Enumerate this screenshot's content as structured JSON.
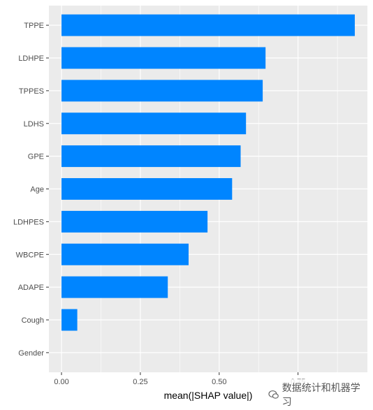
{
  "chart_data": {
    "type": "bar",
    "orientation": "horizontal",
    "categories": [
      "TPPE",
      "LDHPE",
      "TPPES",
      "LDHS",
      "GPE",
      "Age",
      "LDHPES",
      "WBCPE",
      "ADAPE",
      "Cough",
      "Gender"
    ],
    "values": [
      0.93,
      0.647,
      0.638,
      0.585,
      0.568,
      0.541,
      0.463,
      0.403,
      0.337,
      0.05,
      0.0
    ],
    "title": "",
    "xlabel": "mean(|SHAP value|)",
    "ylabel": "",
    "xlim": [
      -0.04,
      0.97
    ],
    "x_ticks": [
      "0.00",
      "0.25",
      "0.50",
      "0.75"
    ],
    "x_tick_values": [
      0,
      0.25,
      0.5,
      0.75
    ],
    "bar_color": "#0085FF",
    "panel_background": "#EBEBEB",
    "grid": true
  },
  "watermark": {
    "text": "数据统计和机器学习",
    "icon": "wechat-icon"
  }
}
